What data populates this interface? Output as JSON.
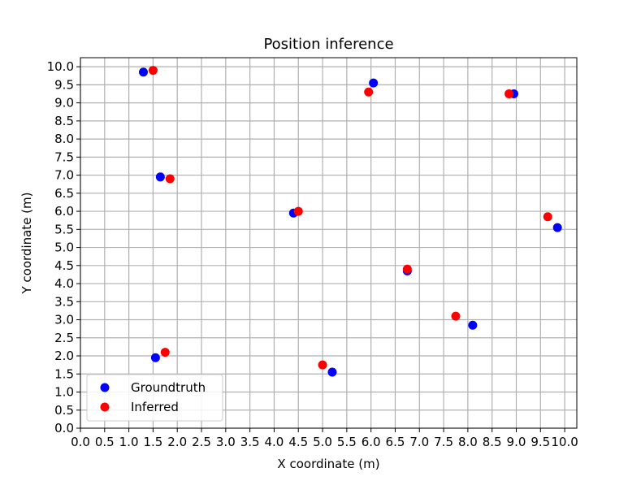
{
  "chart_data": {
    "type": "scatter",
    "title": "Position inference",
    "xlabel": "X coordinate (m)",
    "ylabel": "Y coordinate (m)",
    "xlim": [
      0,
      10.25
    ],
    "ylim": [
      0,
      10.25
    ],
    "xticks": [
      "0.0",
      "0.5",
      "1.0",
      "1.5",
      "2.0",
      "2.5",
      "3.0",
      "3.5",
      "4.0",
      "4.5",
      "5.0",
      "5.5",
      "6.0",
      "6.5",
      "7.0",
      "7.5",
      "8.0",
      "8.5",
      "9.0",
      "9.5",
      "10.0"
    ],
    "yticks": [
      "0.0",
      "0.5",
      "1.0",
      "1.5",
      "2.0",
      "2.5",
      "3.0",
      "3.5",
      "4.0",
      "4.5",
      "5.0",
      "5.5",
      "6.0",
      "6.5",
      "7.0",
      "7.5",
      "8.0",
      "8.5",
      "9.0",
      "9.5",
      "10.0"
    ],
    "grid": true,
    "legend_position": "lower left",
    "series": [
      {
        "name": "Groundtruth",
        "color": "#0000ff",
        "points": [
          {
            "x": 1.3,
            "y": 9.85
          },
          {
            "x": 6.05,
            "y": 9.55
          },
          {
            "x": 8.95,
            "y": 9.25
          },
          {
            "x": 1.65,
            "y": 6.95
          },
          {
            "x": 4.4,
            "y": 5.95
          },
          {
            "x": 9.85,
            "y": 5.55
          },
          {
            "x": 6.75,
            "y": 4.35
          },
          {
            "x": 8.1,
            "y": 2.85
          },
          {
            "x": 1.55,
            "y": 1.95
          },
          {
            "x": 5.2,
            "y": 1.55
          }
        ]
      },
      {
        "name": "Inferred",
        "color": "#ff0000",
        "points": [
          {
            "x": 1.5,
            "y": 9.9
          },
          {
            "x": 5.95,
            "y": 9.3
          },
          {
            "x": 8.85,
            "y": 9.25
          },
          {
            "x": 1.85,
            "y": 6.9
          },
          {
            "x": 4.5,
            "y": 6.0
          },
          {
            "x": 9.65,
            "y": 5.85
          },
          {
            "x": 6.75,
            "y": 4.4
          },
          {
            "x": 7.75,
            "y": 3.1
          },
          {
            "x": 1.75,
            "y": 2.1
          },
          {
            "x": 5.0,
            "y": 1.75
          }
        ]
      }
    ]
  }
}
